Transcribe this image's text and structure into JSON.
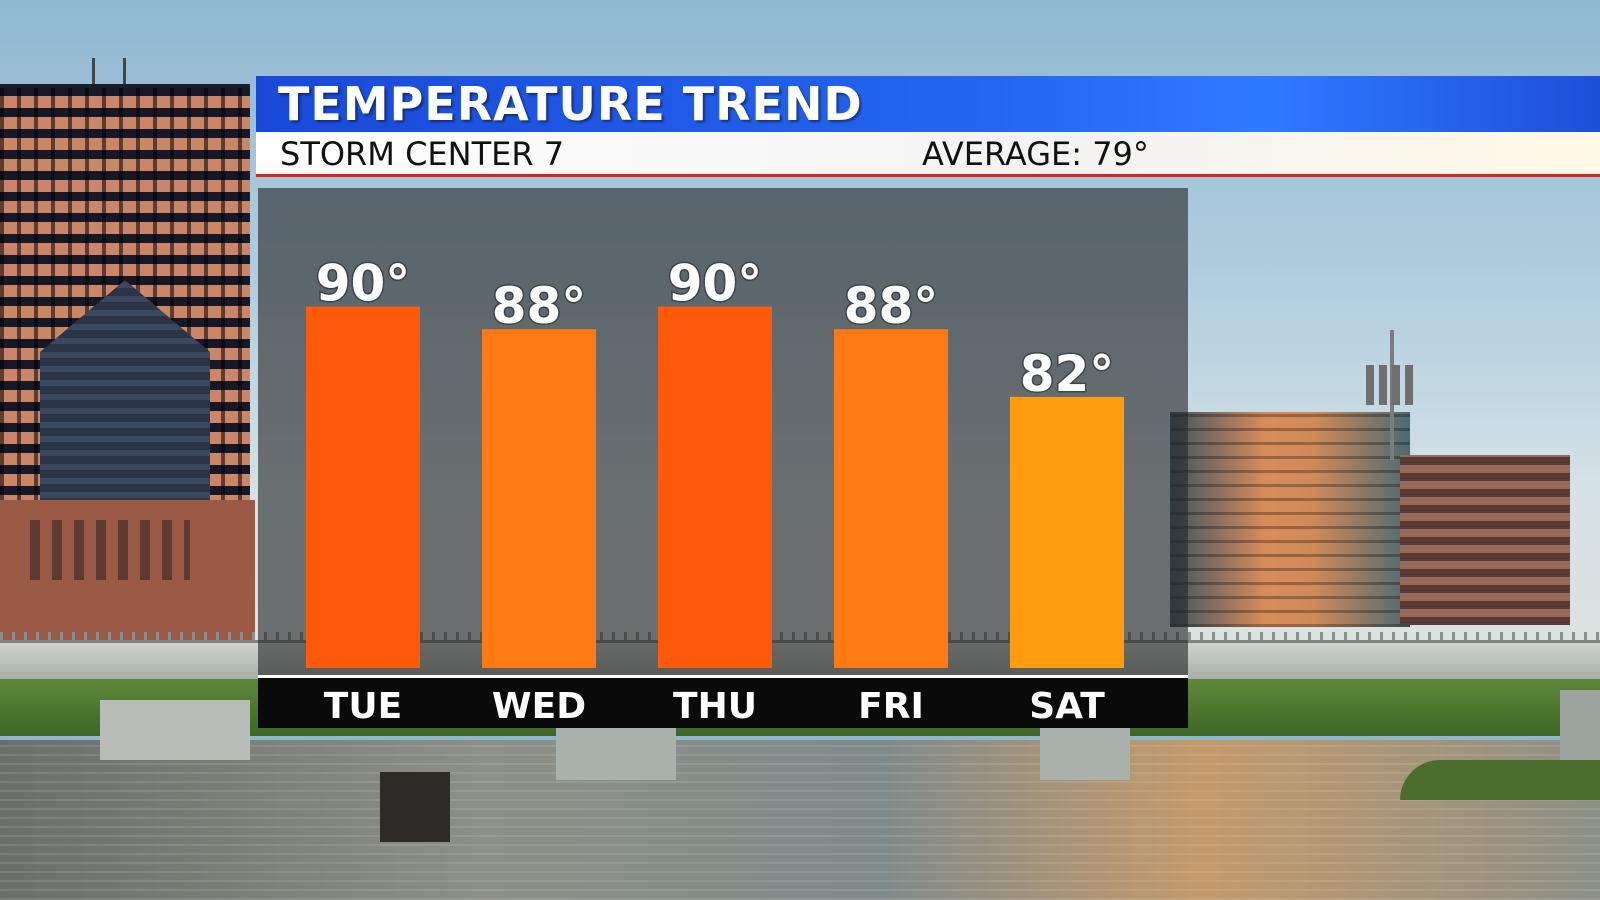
{
  "header": {
    "title": "TEMPERATURE TREND",
    "subtitle": "STORM CENTER 7",
    "average": "AVERAGE: 79°"
  },
  "colors": {
    "header_blue": "#2466f0",
    "hot_bar": "#ff5a0c",
    "warm_bar": "#ff7a12",
    "mild_bar": "#ff9c10",
    "accent_red": "#d92520"
  },
  "chart_data": {
    "type": "bar",
    "title": "TEMPERATURE TREND",
    "categories": [
      "TUE",
      "WED",
      "THU",
      "FRI",
      "SAT"
    ],
    "values": [
      90,
      88,
      90,
      88,
      82
    ],
    "value_labels": [
      "90°",
      "88°",
      "90°",
      "88°",
      "82°"
    ],
    "bar_colors": [
      "#ff5a0c",
      "#ff7a12",
      "#ff5a0c",
      "#ff7a12",
      "#ff9c10"
    ],
    "ylim": [
      58,
      92
    ],
    "grid": false,
    "xlabel": "",
    "ylabel": ""
  }
}
